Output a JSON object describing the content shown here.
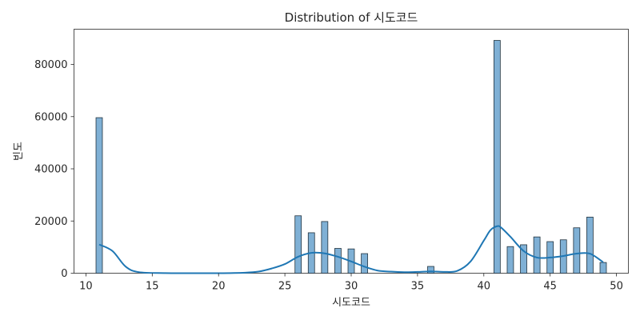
{
  "chart_data": {
    "type": "bar",
    "title": "Distribution of 시도코드",
    "xlabel": "시도코드",
    "ylabel": "빈도",
    "xlim": [
      9.1,
      50.9
    ],
    "ylim": [
      0,
      93500
    ],
    "xticks": [
      10,
      15,
      20,
      25,
      30,
      35,
      40,
      45,
      50
    ],
    "yticks": [
      0,
      20000,
      40000,
      60000,
      80000
    ],
    "grid": false,
    "legend": "none",
    "bar_width": 0.48,
    "bar_color": "#7fb0d5",
    "bar_edge_color": "#22333f",
    "kde_color": "#1f77b4",
    "bars": [
      {
        "x": 11,
        "value": 59600
      },
      {
        "x": 26,
        "value": 22000
      },
      {
        "x": 27,
        "value": 15500
      },
      {
        "x": 28,
        "value": 19800
      },
      {
        "x": 29,
        "value": 9500
      },
      {
        "x": 30,
        "value": 9300
      },
      {
        "x": 31,
        "value": 7500
      },
      {
        "x": 36,
        "value": 2600
      },
      {
        "x": 41,
        "value": 89200
      },
      {
        "x": 42,
        "value": 10200
      },
      {
        "x": 43,
        "value": 10900
      },
      {
        "x": 44,
        "value": 13900
      },
      {
        "x": 45,
        "value": 12100
      },
      {
        "x": 46,
        "value": 12800
      },
      {
        "x": 47,
        "value": 17400
      },
      {
        "x": 48,
        "value": 21500
      },
      {
        "x": 49,
        "value": 4100
      }
    ],
    "kde": {
      "x": [
        11,
        12,
        13,
        14,
        16,
        18,
        20,
        22,
        23,
        24,
        25,
        26,
        27,
        28,
        29,
        30,
        31,
        32,
        33,
        34,
        35,
        36,
        37,
        38,
        39,
        40,
        40.5,
        41,
        41.3,
        42,
        43,
        44,
        45,
        46,
        47,
        48,
        49
      ],
      "y": [
        11000,
        8500,
        2500,
        400,
        50,
        0,
        0,
        200,
        600,
        1800,
        3500,
        6300,
        7800,
        7600,
        6300,
        4500,
        2500,
        1000,
        600,
        400,
        500,
        700,
        500,
        900,
        4500,
        12500,
        16500,
        18000,
        17500,
        14000,
        8500,
        6000,
        6000,
        6600,
        7500,
        7500,
        4200
      ]
    }
  }
}
